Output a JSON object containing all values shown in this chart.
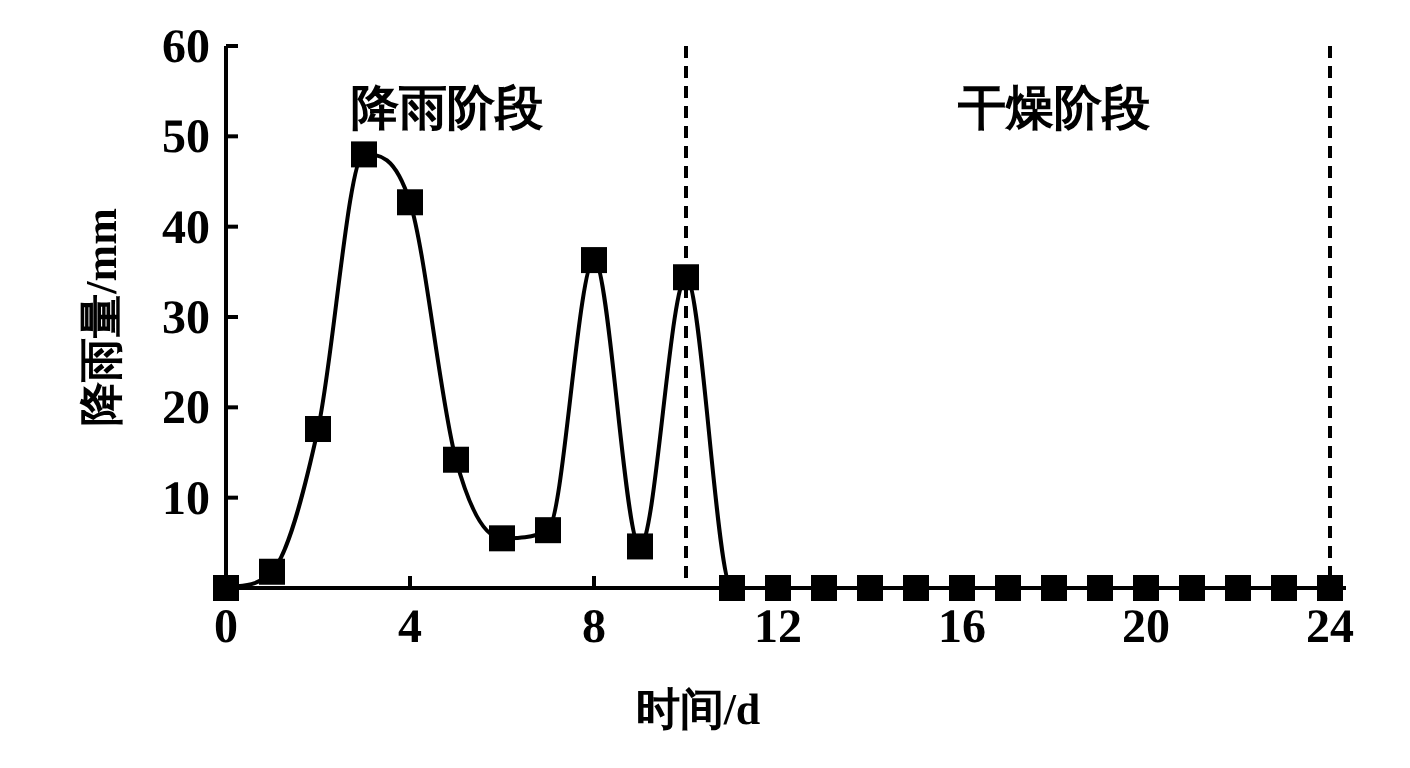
{
  "chart_data": {
    "type": "line",
    "xlabel": "时间/d",
    "ylabel": "降雨量/mm",
    "x": [
      0,
      1,
      2,
      3,
      4,
      5,
      6,
      7,
      8,
      9,
      10,
      11,
      12,
      13,
      14,
      15,
      16,
      17,
      18,
      19,
      20,
      21,
      22,
      23,
      24
    ],
    "series": [
      {
        "color": "#000000",
        "values": [
          0,
          1.8,
          17.6,
          48,
          42.7,
          14.2,
          5.5,
          6.4,
          36.3,
          4.6,
          34.4,
          0,
          0,
          0,
          0,
          0,
          0,
          0,
          0,
          0,
          0,
          0,
          0,
          0,
          0
        ]
      }
    ],
    "xlim": [
      0,
      24
    ],
    "xticks": [
      0,
      4,
      8,
      12,
      16,
      20,
      24
    ],
    "ylim": [
      0,
      60
    ],
    "yticks": [
      10,
      20,
      30,
      40,
      50,
      60
    ],
    "ref_lines": [
      {
        "axis": "x",
        "value": 10,
        "line_style": "dashed",
        "color": "#000000"
      },
      {
        "axis": "x",
        "value": 24,
        "line_style": "dashed",
        "color": "#000000"
      }
    ],
    "annotations": [
      "降雨阶段",
      "干燥阶段"
    ],
    "marker": "square",
    "line_style": "solid"
  }
}
